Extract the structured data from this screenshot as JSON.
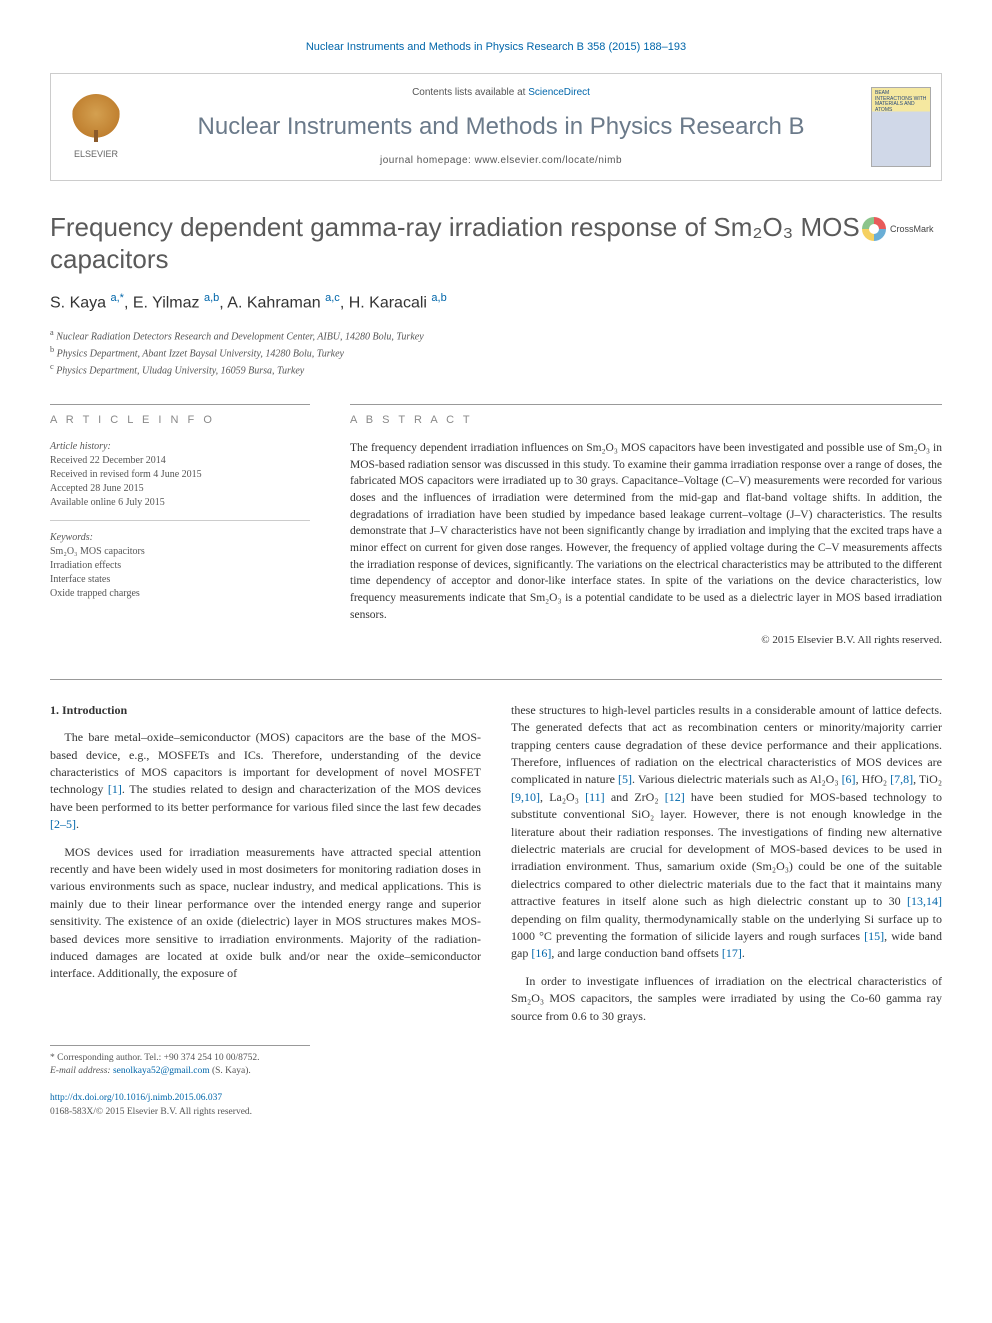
{
  "citation": "Nuclear Instruments and Methods in Physics Research B 358 (2015) 188–193",
  "header": {
    "contents_prefix": "Contents lists available at ",
    "contents_link": "ScienceDirect",
    "journal_name": "Nuclear Instruments and Methods in Physics Research B",
    "homepage_label": "journal homepage: www.elsevier.com/locate/nimb",
    "publisher": "ELSEVIER",
    "cover_text": "BEAM INTERACTIONS WITH MATERIALS AND ATOMS"
  },
  "title": "Frequency dependent gamma-ray irradiation response of Sm₂O₃ MOS capacitors",
  "crossmark": "CrossMark",
  "authors_html": "S. Kaya <sup>a,*</sup>, E. Yilmaz <sup>a,b</sup>, A. Kahraman <sup>a,c</sup>, H. Karacali <sup>a,b</sup>",
  "affiliations": [
    {
      "sup": "a",
      "text": "Nuclear Radiation Detectors Research and Development Center, AIBU, 14280 Bolu, Turkey"
    },
    {
      "sup": "b",
      "text": "Physics Department, Abant Izzet Baysal University, 14280 Bolu, Turkey"
    },
    {
      "sup": "c",
      "text": "Physics Department, Uludag University, 16059 Bursa, Turkey"
    }
  ],
  "article_info_heading": "A R T I C L E   I N F O",
  "abstract_heading": "A B S T R A C T",
  "history": {
    "label": "Article history:",
    "received": "Received 22 December 2014",
    "revised": "Received in revised form 4 June 2015",
    "accepted": "Accepted 28 June 2015",
    "online": "Available online 6 July 2015"
  },
  "keywords": {
    "label": "Keywords:",
    "items": [
      "Sm₂O₃ MOS capacitors",
      "Irradiation effects",
      "Interface states",
      "Oxide trapped charges"
    ]
  },
  "abstract": "The frequency dependent irradiation influences on Sm₂O₃ MOS capacitors have been investigated and possible use of Sm₂O₃ in MOS-based radiation sensor was discussed in this study. To examine their gamma irradiation response over a range of doses, the fabricated MOS capacitors were irradiated up to 30 grays. Capacitance–Voltage (C–V) measurements were recorded for various doses and the influences of irradiation were determined from the mid-gap and flat-band voltage shifts. In addition, the degradations of irradiation have been studied by impedance based leakage current–voltage (J–V) characteristics. The results demonstrate that J–V characteristics have not been significantly change by irradiation and implying that the excited traps have a minor effect on current for given dose ranges. However, the frequency of applied voltage during the C–V measurements affects the irradiation response of devices, significantly. The variations on the electrical characteristics may be attributed to the different time dependency of acceptor and donor-like interface states. In spite of the variations on the device characteristics, low frequency measurements indicate that Sm₂O₃ is a potential candidate to be used as a dielectric layer in MOS based irradiation sensors.",
  "copyright": "© 2015 Elsevier B.V. All rights reserved.",
  "section1": {
    "heading": "1. Introduction",
    "p1_a": "The bare metal–oxide–semiconductor (MOS) capacitors are the base of the MOS-based device, e.g., MOSFETs and ICs. Therefore, understanding of the device characteristics of MOS capacitors is important for development of novel MOSFET technology ",
    "p1_ref1": "[1]",
    "p1_b": ". The studies related to design and characterization of the MOS devices have been performed to its better performance for various filed since the last few decades ",
    "p1_ref2": "[2–5]",
    "p1_c": ".",
    "p2_a": "MOS devices used for irradiation measurements have attracted special attention recently and have been widely used in most dosimeters for monitoring radiation doses in various environments such as space, nuclear industry, and medical applications. This is mainly due to their linear performance over the intended energy range and superior sensitivity. The existence of an oxide (dielectric) layer in MOS structures makes MOS-based devices more sensitive to irradiation environments. Majority of the radiation-induced damages are located at oxide bulk and/or near the oxide–semiconductor interface. Additionally, the exposure of",
    "p3_a": "these structures to high-level particles results in a considerable amount of lattice defects. The generated defects that act as recombination centers or minority/majority carrier trapping centers cause degradation of these device performance and their applications. Therefore, influences of radiation on the electrical characteristics of MOS devices are complicated in nature ",
    "p3_ref5": "[5]",
    "p3_b": ". Various dielectric materials such as Al₂O₃ ",
    "p3_ref6": "[6]",
    "p3_c": ", HfO₂ ",
    "p3_ref78": "[7,8]",
    "p3_d": ", TiO₂ ",
    "p3_ref910": "[9,10]",
    "p3_e": ", La₂O₃ ",
    "p3_ref11": "[11]",
    "p3_f": " and ZrO₂ ",
    "p3_ref12": "[12]",
    "p3_g": " have been studied for MOS-based technology to substitute conventional SiO₂ layer. However, there is not enough knowledge in the literature about their radiation responses. The investigations of finding new alternative dielectric materials are crucial for development of MOS-based devices to be used in irradiation environment. Thus, samarium oxide (Sm₂O₃) could be one of the suitable dielectrics compared to other dielectric materials due to the fact that it maintains many attractive features in itself alone such as high dielectric constant up to 30 ",
    "p3_ref1314": "[13,14]",
    "p3_h": " depending on film quality, thermodynamically stable on the underlying Si surface up to 1000 °C preventing the formation of silicide layers and rough surfaces ",
    "p3_ref15": "[15]",
    "p3_i": ", wide band gap ",
    "p3_ref16": "[16]",
    "p3_j": ", and large conduction band offsets ",
    "p3_ref17": "[17]",
    "p3_k": ".",
    "p4": "In order to investigate influences of irradiation on the electrical characteristics of Sm₂O₃ MOS capacitors, the samples were irradiated by using the Co-60 gamma ray source from 0.6 to 30 grays."
  },
  "footnote": {
    "corr": "* Corresponding author. Tel.: +90 374 254 10 00/8752.",
    "email_label": "E-mail address: ",
    "email": "senolkaya52@gmail.com",
    "email_tail": " (S. Kaya)."
  },
  "footer": {
    "doi": "http://dx.doi.org/10.1016/j.nimb.2015.06.037",
    "issn": "0168-583X/© 2015 Elsevier B.V. All rights reserved."
  },
  "colors": {
    "link": "#0066aa",
    "heading_gray": "#5a5a5a",
    "text": "#333333",
    "light": "#888888"
  }
}
